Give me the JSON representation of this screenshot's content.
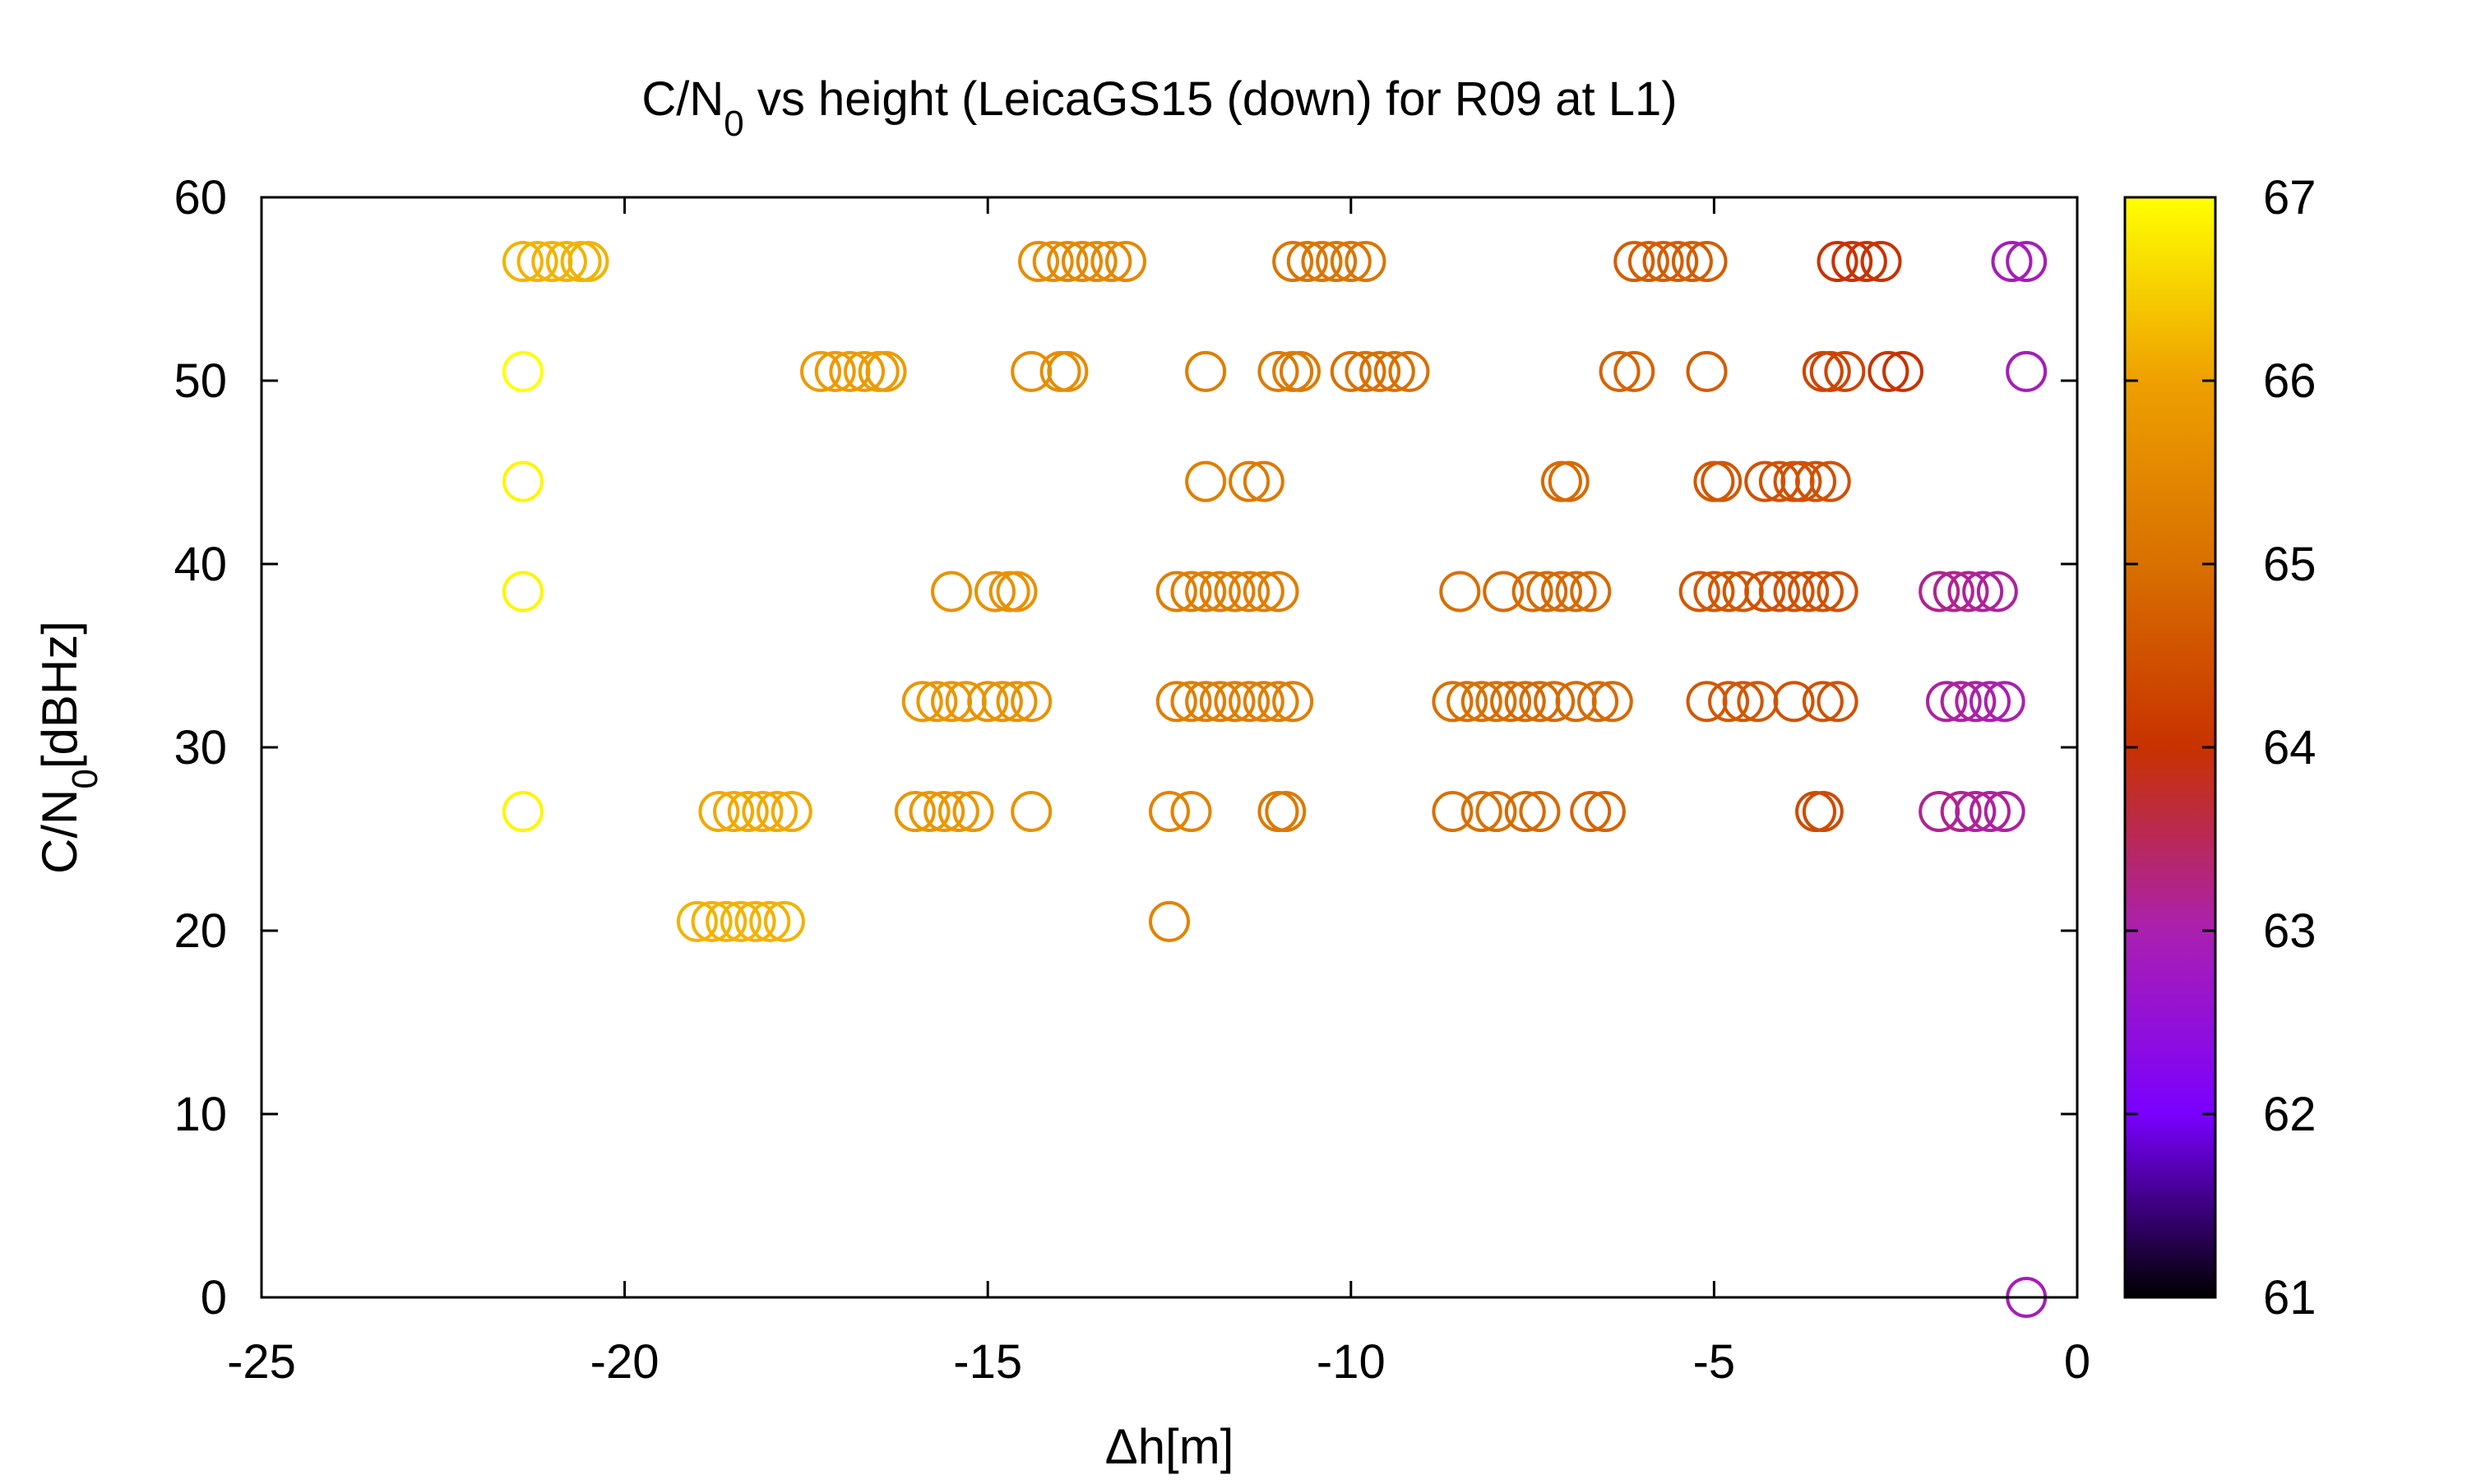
{
  "chart_data": {
    "type": "scatter",
    "title": {
      "prefix": "C/N",
      "subscript": "0",
      "suffix": " vs height (LeicaGS15 (down) for R09 at L1)"
    },
    "xlabel": "Δh[m]",
    "ylabel": {
      "prefix": "C/N",
      "subscript": "0",
      "suffix": "[dBHz]"
    },
    "xlim": [
      -25,
      0
    ],
    "ylim": [
      0,
      60
    ],
    "xticks": [
      -25,
      -20,
      -15,
      -10,
      -5,
      0
    ],
    "yticks": [
      0,
      10,
      20,
      30,
      40,
      50,
      60
    ],
    "xtick_labels": [
      "-25",
      "-20",
      "-15",
      "-10",
      "-5",
      "0"
    ],
    "ytick_labels": [
      "0",
      "10",
      "20",
      "30",
      "40",
      "50",
      "60"
    ],
    "grid": false,
    "marker": "open-circle",
    "colorbar": {
      "range": [
        61,
        67
      ],
      "ticks": [
        61,
        62,
        63,
        64,
        65,
        66,
        67
      ],
      "tick_labels": [
        "61",
        "62",
        "63",
        "64",
        "65",
        "66",
        "67"
      ],
      "palette": [
        "#000000",
        "#7a00ff",
        "#aa20b0",
        "#c83200",
        "#d87000",
        "#eea000",
        "#ffff00"
      ]
    },
    "points": [
      {
        "x": -21.4,
        "y": 56.5,
        "c": 66.2
      },
      {
        "x": -21.2,
        "y": 56.5,
        "c": 66.2
      },
      {
        "x": -21.0,
        "y": 56.5,
        "c": 66.2
      },
      {
        "x": -20.8,
        "y": 56.5,
        "c": 66.2
      },
      {
        "x": -20.6,
        "y": 56.5,
        "c": 66.2
      },
      {
        "x": -20.5,
        "y": 56.5,
        "c": 66.2
      },
      {
        "x": -14.3,
        "y": 56.5,
        "c": 65.6
      },
      {
        "x": -14.1,
        "y": 56.5,
        "c": 65.6
      },
      {
        "x": -13.9,
        "y": 56.5,
        "c": 65.5
      },
      {
        "x": -13.7,
        "y": 56.5,
        "c": 65.5
      },
      {
        "x": -13.5,
        "y": 56.5,
        "c": 65.5
      },
      {
        "x": -13.3,
        "y": 56.5,
        "c": 65.5
      },
      {
        "x": -13.1,
        "y": 56.5,
        "c": 65.5
      },
      {
        "x": -10.8,
        "y": 56.5,
        "c": 65.1
      },
      {
        "x": -10.6,
        "y": 56.5,
        "c": 65.1
      },
      {
        "x": -10.4,
        "y": 56.5,
        "c": 65.1
      },
      {
        "x": -10.2,
        "y": 56.5,
        "c": 65.1
      },
      {
        "x": -10.0,
        "y": 56.5,
        "c": 65.1
      },
      {
        "x": -9.8,
        "y": 56.5,
        "c": 65.1
      },
      {
        "x": -6.1,
        "y": 56.5,
        "c": 64.7
      },
      {
        "x": -5.9,
        "y": 56.5,
        "c": 64.7
      },
      {
        "x": -5.7,
        "y": 56.5,
        "c": 64.7
      },
      {
        "x": -5.5,
        "y": 56.5,
        "c": 64.7
      },
      {
        "x": -5.3,
        "y": 56.5,
        "c": 64.7
      },
      {
        "x": -5.1,
        "y": 56.5,
        "c": 64.7
      },
      {
        "x": -3.3,
        "y": 56.5,
        "c": 64.0
      },
      {
        "x": -3.1,
        "y": 56.5,
        "c": 64.0
      },
      {
        "x": -2.9,
        "y": 56.5,
        "c": 64.0
      },
      {
        "x": -2.7,
        "y": 56.5,
        "c": 64.0
      },
      {
        "x": -0.9,
        "y": 56.5,
        "c": 62.9
      },
      {
        "x": -0.7,
        "y": 56.5,
        "c": 62.9
      },
      {
        "x": -21.4,
        "y": 50.5,
        "c": 67.0
      },
      {
        "x": -17.3,
        "y": 50.5,
        "c": 65.9
      },
      {
        "x": -17.1,
        "y": 50.5,
        "c": 65.9
      },
      {
        "x": -16.9,
        "y": 50.5,
        "c": 65.9
      },
      {
        "x": -16.7,
        "y": 50.5,
        "c": 65.9
      },
      {
        "x": -16.5,
        "y": 50.5,
        "c": 65.9
      },
      {
        "x": -16.4,
        "y": 50.5,
        "c": 65.9
      },
      {
        "x": -14.4,
        "y": 50.5,
        "c": 65.6
      },
      {
        "x": -14.0,
        "y": 50.5,
        "c": 65.6
      },
      {
        "x": -13.9,
        "y": 50.5,
        "c": 65.6
      },
      {
        "x": -12.0,
        "y": 50.5,
        "c": 65.3
      },
      {
        "x": -11.0,
        "y": 50.5,
        "c": 65.2
      },
      {
        "x": -10.8,
        "y": 50.5,
        "c": 65.2
      },
      {
        "x": -10.7,
        "y": 50.5,
        "c": 65.2
      },
      {
        "x": -10.0,
        "y": 50.5,
        "c": 65.0
      },
      {
        "x": -9.8,
        "y": 50.5,
        "c": 65.0
      },
      {
        "x": -9.6,
        "y": 50.5,
        "c": 65.0
      },
      {
        "x": -9.4,
        "y": 50.5,
        "c": 65.0
      },
      {
        "x": -9.2,
        "y": 50.5,
        "c": 65.0
      },
      {
        "x": -6.3,
        "y": 50.5,
        "c": 64.8
      },
      {
        "x": -6.1,
        "y": 50.5,
        "c": 64.8
      },
      {
        "x": -5.1,
        "y": 50.5,
        "c": 64.7
      },
      {
        "x": -3.5,
        "y": 50.5,
        "c": 64.3
      },
      {
        "x": -3.4,
        "y": 50.5,
        "c": 64.3
      },
      {
        "x": -3.2,
        "y": 50.5,
        "c": 64.3
      },
      {
        "x": -2.6,
        "y": 50.5,
        "c": 64.0
      },
      {
        "x": -2.4,
        "y": 50.5,
        "c": 64.0
      },
      {
        "x": -0.7,
        "y": 50.5,
        "c": 62.9
      },
      {
        "x": -21.4,
        "y": 44.5,
        "c": 66.9
      },
      {
        "x": -12.0,
        "y": 44.5,
        "c": 65.3
      },
      {
        "x": -11.4,
        "y": 44.5,
        "c": 65.2
      },
      {
        "x": -11.2,
        "y": 44.5,
        "c": 65.2
      },
      {
        "x": -7.1,
        "y": 44.5,
        "c": 64.9
      },
      {
        "x": -7.0,
        "y": 44.5,
        "c": 64.9
      },
      {
        "x": -5.0,
        "y": 44.5,
        "c": 64.6
      },
      {
        "x": -4.9,
        "y": 44.5,
        "c": 64.6
      },
      {
        "x": -4.3,
        "y": 44.5,
        "c": 64.5
      },
      {
        "x": -4.1,
        "y": 44.5,
        "c": 64.5
      },
      {
        "x": -3.9,
        "y": 44.5,
        "c": 64.5
      },
      {
        "x": -3.8,
        "y": 44.5,
        "c": 64.5
      },
      {
        "x": -3.6,
        "y": 44.5,
        "c": 64.5
      },
      {
        "x": -3.4,
        "y": 44.5,
        "c": 64.5
      },
      {
        "x": -21.4,
        "y": 38.5,
        "c": 66.9
      },
      {
        "x": -15.5,
        "y": 38.5,
        "c": 65.7
      },
      {
        "x": -14.9,
        "y": 38.5,
        "c": 65.7
      },
      {
        "x": -14.7,
        "y": 38.5,
        "c": 65.7
      },
      {
        "x": -14.6,
        "y": 38.5,
        "c": 65.7
      },
      {
        "x": -12.4,
        "y": 38.5,
        "c": 65.3
      },
      {
        "x": -12.2,
        "y": 38.5,
        "c": 65.3
      },
      {
        "x": -12.0,
        "y": 38.5,
        "c": 65.3
      },
      {
        "x": -11.8,
        "y": 38.5,
        "c": 65.3
      },
      {
        "x": -11.6,
        "y": 38.5,
        "c": 65.3
      },
      {
        "x": -11.4,
        "y": 38.5,
        "c": 65.3
      },
      {
        "x": -11.2,
        "y": 38.5,
        "c": 65.3
      },
      {
        "x": -11.0,
        "y": 38.5,
        "c": 65.3
      },
      {
        "x": -8.5,
        "y": 38.5,
        "c": 65.0
      },
      {
        "x": -7.9,
        "y": 38.5,
        "c": 64.9
      },
      {
        "x": -7.5,
        "y": 38.5,
        "c": 64.9
      },
      {
        "x": -7.3,
        "y": 38.5,
        "c": 64.9
      },
      {
        "x": -7.1,
        "y": 38.5,
        "c": 64.9
      },
      {
        "x": -6.9,
        "y": 38.5,
        "c": 64.9
      },
      {
        "x": -6.7,
        "y": 38.5,
        "c": 64.9
      },
      {
        "x": -5.2,
        "y": 38.5,
        "c": 64.6
      },
      {
        "x": -5.0,
        "y": 38.5,
        "c": 64.6
      },
      {
        "x": -4.8,
        "y": 38.5,
        "c": 64.6
      },
      {
        "x": -4.6,
        "y": 38.5,
        "c": 64.6
      },
      {
        "x": -4.3,
        "y": 38.5,
        "c": 64.5
      },
      {
        "x": -4.1,
        "y": 38.5,
        "c": 64.5
      },
      {
        "x": -3.9,
        "y": 38.5,
        "c": 64.5
      },
      {
        "x": -3.7,
        "y": 38.5,
        "c": 64.5
      },
      {
        "x": -3.5,
        "y": 38.5,
        "c": 64.5
      },
      {
        "x": -3.3,
        "y": 38.5,
        "c": 64.5
      },
      {
        "x": -1.9,
        "y": 38.5,
        "c": 63.2
      },
      {
        "x": -1.7,
        "y": 38.5,
        "c": 63.2
      },
      {
        "x": -1.5,
        "y": 38.5,
        "c": 63.2
      },
      {
        "x": -1.3,
        "y": 38.5,
        "c": 63.1
      },
      {
        "x": -1.1,
        "y": 38.5,
        "c": 63.1
      },
      {
        "x": -15.9,
        "y": 32.5,
        "c": 65.8
      },
      {
        "x": -15.7,
        "y": 32.5,
        "c": 65.8
      },
      {
        "x": -15.5,
        "y": 32.5,
        "c": 65.8
      },
      {
        "x": -15.3,
        "y": 32.5,
        "c": 65.8
      },
      {
        "x": -15.0,
        "y": 32.5,
        "c": 65.7
      },
      {
        "x": -14.8,
        "y": 32.5,
        "c": 65.7
      },
      {
        "x": -14.6,
        "y": 32.5,
        "c": 65.7
      },
      {
        "x": -14.4,
        "y": 32.5,
        "c": 65.7
      },
      {
        "x": -12.4,
        "y": 32.5,
        "c": 65.3
      },
      {
        "x": -12.2,
        "y": 32.5,
        "c": 65.3
      },
      {
        "x": -12.0,
        "y": 32.5,
        "c": 65.3
      },
      {
        "x": -11.8,
        "y": 32.5,
        "c": 65.3
      },
      {
        "x": -11.6,
        "y": 32.5,
        "c": 65.3
      },
      {
        "x": -11.4,
        "y": 32.5,
        "c": 65.3
      },
      {
        "x": -11.2,
        "y": 32.5,
        "c": 65.3
      },
      {
        "x": -11.0,
        "y": 32.5,
        "c": 65.3
      },
      {
        "x": -10.8,
        "y": 32.5,
        "c": 65.3
      },
      {
        "x": -8.6,
        "y": 32.5,
        "c": 65.0
      },
      {
        "x": -8.4,
        "y": 32.5,
        "c": 65.0
      },
      {
        "x": -8.2,
        "y": 32.5,
        "c": 65.0
      },
      {
        "x": -8.0,
        "y": 32.5,
        "c": 65.0
      },
      {
        "x": -7.8,
        "y": 32.5,
        "c": 64.9
      },
      {
        "x": -7.6,
        "y": 32.5,
        "c": 64.9
      },
      {
        "x": -7.4,
        "y": 32.5,
        "c": 64.9
      },
      {
        "x": -7.2,
        "y": 32.5,
        "c": 64.9
      },
      {
        "x": -6.9,
        "y": 32.5,
        "c": 64.9
      },
      {
        "x": -6.6,
        "y": 32.5,
        "c": 64.9
      },
      {
        "x": -6.4,
        "y": 32.5,
        "c": 64.9
      },
      {
        "x": -5.1,
        "y": 32.5,
        "c": 64.6
      },
      {
        "x": -4.8,
        "y": 32.5,
        "c": 64.6
      },
      {
        "x": -4.6,
        "y": 32.5,
        "c": 64.6
      },
      {
        "x": -4.4,
        "y": 32.5,
        "c": 64.6
      },
      {
        "x": -3.9,
        "y": 32.5,
        "c": 64.5
      },
      {
        "x": -3.5,
        "y": 32.5,
        "c": 64.5
      },
      {
        "x": -3.3,
        "y": 32.5,
        "c": 64.5
      },
      {
        "x": -1.8,
        "y": 32.5,
        "c": 63.1
      },
      {
        "x": -1.6,
        "y": 32.5,
        "c": 63.1
      },
      {
        "x": -1.4,
        "y": 32.5,
        "c": 63.1
      },
      {
        "x": -1.2,
        "y": 32.5,
        "c": 63.0
      },
      {
        "x": -1.0,
        "y": 32.5,
        "c": 63.0
      },
      {
        "x": -21.4,
        "y": 26.5,
        "c": 66.9
      },
      {
        "x": -18.7,
        "y": 26.5,
        "c": 66.1
      },
      {
        "x": -18.5,
        "y": 26.5,
        "c": 66.1
      },
      {
        "x": -18.3,
        "y": 26.5,
        "c": 66.1
      },
      {
        "x": -18.1,
        "y": 26.5,
        "c": 66.1
      },
      {
        "x": -17.9,
        "y": 26.5,
        "c": 66.1
      },
      {
        "x": -17.7,
        "y": 26.5,
        "c": 66.1
      },
      {
        "x": -16.0,
        "y": 26.5,
        "c": 65.8
      },
      {
        "x": -15.8,
        "y": 26.5,
        "c": 65.8
      },
      {
        "x": -15.6,
        "y": 26.5,
        "c": 65.8
      },
      {
        "x": -15.4,
        "y": 26.5,
        "c": 65.8
      },
      {
        "x": -15.2,
        "y": 26.5,
        "c": 65.8
      },
      {
        "x": -14.4,
        "y": 26.5,
        "c": 65.7
      },
      {
        "x": -12.5,
        "y": 26.5,
        "c": 65.4
      },
      {
        "x": -12.2,
        "y": 26.5,
        "c": 65.4
      },
      {
        "x": -11.0,
        "y": 26.5,
        "c": 65.2
      },
      {
        "x": -10.9,
        "y": 26.5,
        "c": 65.2
      },
      {
        "x": -8.6,
        "y": 26.5,
        "c": 65.0
      },
      {
        "x": -8.2,
        "y": 26.5,
        "c": 65.0
      },
      {
        "x": -8.0,
        "y": 26.5,
        "c": 65.0
      },
      {
        "x": -7.6,
        "y": 26.5,
        "c": 64.9
      },
      {
        "x": -7.4,
        "y": 26.5,
        "c": 64.9
      },
      {
        "x": -6.7,
        "y": 26.5,
        "c": 64.8
      },
      {
        "x": -6.5,
        "y": 26.5,
        "c": 64.8
      },
      {
        "x": -3.6,
        "y": 26.5,
        "c": 64.4
      },
      {
        "x": -3.5,
        "y": 26.5,
        "c": 64.4
      },
      {
        "x": -1.9,
        "y": 26.5,
        "c": 63.2
      },
      {
        "x": -1.6,
        "y": 26.5,
        "c": 63.2
      },
      {
        "x": -1.4,
        "y": 26.5,
        "c": 63.1
      },
      {
        "x": -1.2,
        "y": 26.5,
        "c": 63.1
      },
      {
        "x": -1.0,
        "y": 26.5,
        "c": 63.1
      },
      {
        "x": -19.0,
        "y": 20.5,
        "c": 66.2
      },
      {
        "x": -18.8,
        "y": 20.5,
        "c": 66.2
      },
      {
        "x": -18.6,
        "y": 20.5,
        "c": 66.2
      },
      {
        "x": -18.4,
        "y": 20.5,
        "c": 66.2
      },
      {
        "x": -18.2,
        "y": 20.5,
        "c": 66.2
      },
      {
        "x": -18.0,
        "y": 20.5,
        "c": 66.2
      },
      {
        "x": -17.8,
        "y": 20.5,
        "c": 66.2
      },
      {
        "x": -12.5,
        "y": 20.5,
        "c": 65.4
      },
      {
        "x": -0.7,
        "y": 0.0,
        "c": 62.9
      }
    ]
  }
}
